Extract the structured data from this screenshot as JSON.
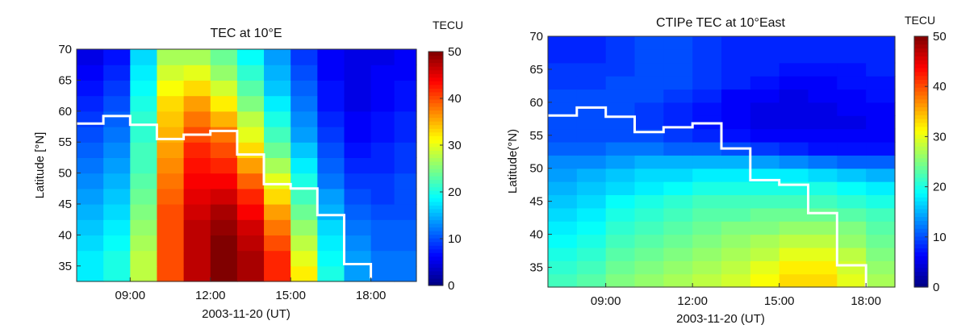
{
  "panels": [
    {
      "title": "TEC at 10°E",
      "ylabel": "Latitude [°N]",
      "xlabel": "2003-11-20 (UT)",
      "colorbar_title": "TECU",
      "colorbar_ticks": [
        "0",
        "10",
        "20",
        "30",
        "40",
        "50"
      ],
      "x_ticks": [
        "09:00",
        "12:00",
        "15:00",
        "18:00"
      ],
      "y_ticks": [
        "35",
        "40",
        "45",
        "50",
        "55",
        "60",
        "65",
        "70"
      ]
    },
    {
      "title": "CTIPe TEC at 10°East",
      "ylabel": "Latitude(°N)",
      "xlabel": "2003-11-20 (UT)",
      "colorbar_title": "TECU",
      "colorbar_ticks": [
        "0",
        "10",
        "20",
        "30",
        "40",
        "50"
      ],
      "x_ticks": [
        "09:00",
        "12:00",
        "15:00",
        "18:00"
      ],
      "y_ticks": [
        "35",
        "40",
        "45",
        "50",
        "55",
        "60",
        "65",
        "70"
      ]
    }
  ],
  "chart_data": [
    {
      "type": "heatmap",
      "title": "TEC at 10°E",
      "xlabel": "2003-11-20 (UT)",
      "ylabel": "Latitude [°N]",
      "x_unit": "UT hour",
      "xlim": [
        7.0,
        19.7
      ],
      "ylim": [
        32.5,
        70
      ],
      "x_ticks": [
        9,
        12,
        15,
        18
      ],
      "y_ticks": [
        35,
        40,
        45,
        50,
        55,
        60,
        65,
        70
      ],
      "color_range": [
        0,
        50
      ],
      "colorbar_label": "TECU",
      "colormap": "jet",
      "x_centers": [
        7.5,
        8.5,
        9.5,
        10.5,
        11.5,
        12.5,
        13.5,
        14.5,
        15.5,
        16.5,
        17.5,
        18.5,
        19.25
      ],
      "y_centers": [
        33.75,
        36.25,
        38.75,
        41.25,
        43.75,
        46.25,
        48.75,
        51.25,
        53.75,
        56.25,
        58.75,
        61.25,
        63.75,
        66.25,
        68.75
      ],
      "z": [
        [
          18,
          20,
          28,
          40,
          47,
          50,
          48,
          42,
          32,
          20,
          14,
          12,
          12
        ],
        [
          18,
          20,
          28,
          40,
          47,
          50,
          48,
          42,
          30,
          19,
          14,
          12,
          12
        ],
        [
          17,
          19,
          27,
          40,
          47,
          50,
          47,
          40,
          28,
          18,
          13,
          11,
          11
        ],
        [
          16,
          18,
          26,
          40,
          47,
          49,
          46,
          38,
          26,
          17,
          12,
          11,
          11
        ],
        [
          15,
          17,
          25,
          40,
          46,
          48,
          44,
          36,
          24,
          15,
          11,
          10,
          10
        ],
        [
          14,
          16,
          24,
          39,
          45,
          46,
          42,
          33,
          22,
          14,
          10,
          9,
          10
        ],
        [
          13,
          15,
          23,
          38,
          44,
          44,
          39,
          30,
          20,
          12,
          9,
          9,
          10
        ],
        [
          12,
          14,
          22,
          37,
          43,
          42,
          36,
          27,
          18,
          11,
          8,
          8,
          9
        ],
        [
          11,
          13,
          22,
          36,
          42,
          40,
          33,
          24,
          16,
          10,
          7,
          8,
          9
        ],
        [
          10,
          12,
          21,
          35,
          40,
          38,
          30,
          22,
          14,
          9,
          6,
          7,
          8
        ],
        [
          9,
          11,
          21,
          34,
          38,
          35,
          28,
          20,
          13,
          8,
          6,
          7,
          8
        ],
        [
          8,
          10,
          20,
          33,
          36,
          32,
          25,
          18,
          12,
          7,
          5,
          6,
          7
        ],
        [
          7,
          9,
          19,
          31,
          33,
          29,
          23,
          16,
          11,
          7,
          5,
          6,
          7
        ],
        [
          6,
          8,
          18,
          29,
          30,
          26,
          21,
          15,
          10,
          6,
          5,
          6,
          6
        ],
        [
          5,
          7,
          17,
          27,
          27,
          24,
          19,
          14,
          9,
          6,
          5,
          5,
          6
        ]
      ],
      "overlay_line": {
        "color": "#ffffff",
        "x": [
          7.0,
          8.0,
          8.0,
          9.0,
          9.0,
          10.0,
          10.0,
          11.0,
          11.0,
          12.0,
          12.0,
          13.0,
          13.0,
          14.0,
          14.0,
          15.0,
          15.0,
          16.0,
          16.0,
          17.0,
          17.0,
          18.0,
          18.0
        ],
        "y": [
          58.0,
          58.0,
          59.2,
          59.2,
          57.8,
          57.8,
          55.5,
          55.5,
          56.2,
          56.2,
          56.8,
          56.8,
          53.0,
          53.0,
          48.2,
          48.2,
          47.5,
          47.5,
          43.2,
          43.2,
          35.3,
          35.3,
          33.0
        ]
      }
    },
    {
      "type": "heatmap",
      "title": "CTIPe TEC at 10°East",
      "xlabel": "2003-11-20 (UT)",
      "ylabel": "Latitude(°N)",
      "x_unit": "UT hour",
      "xlim": [
        7.0,
        19.0
      ],
      "ylim": [
        32,
        70
      ],
      "x_ticks": [
        9,
        12,
        15,
        18
      ],
      "y_ticks": [
        35,
        40,
        45,
        50,
        55,
        60,
        65,
        70
      ],
      "color_range": [
        0,
        50
      ],
      "colorbar_label": "TECU",
      "colormap": "jet",
      "x_centers": [
        7.5,
        8.5,
        9.5,
        10.5,
        11.5,
        12.5,
        13.5,
        14.5,
        15.5,
        16.5,
        17.5,
        18.5
      ],
      "y_centers": [
        33,
        35,
        37,
        39,
        41,
        43,
        45,
        47,
        49,
        51,
        53,
        55,
        57,
        59,
        61,
        63,
        65,
        67,
        69
      ],
      "z": [
        [
          22,
          23,
          25,
          26,
          27,
          28,
          29,
          31,
          33,
          33,
          30,
          27
        ],
        [
          21,
          22,
          24,
          25,
          26,
          27,
          28,
          30,
          32,
          32,
          29,
          26
        ],
        [
          20,
          21,
          23,
          24,
          25,
          26,
          27,
          28,
          30,
          30,
          28,
          25
        ],
        [
          19,
          20,
          22,
          23,
          24,
          25,
          26,
          27,
          28,
          28,
          26,
          24
        ],
        [
          18,
          19,
          21,
          22,
          23,
          24,
          25,
          25,
          26,
          26,
          25,
          23
        ],
        [
          17,
          18,
          20,
          21,
          22,
          23,
          23,
          24,
          24,
          24,
          23,
          22
        ],
        [
          16,
          17,
          19,
          20,
          21,
          22,
          22,
          22,
          22,
          22,
          21,
          20
        ],
        [
          15,
          16,
          17,
          18,
          19,
          20,
          20,
          20,
          20,
          20,
          19,
          18
        ],
        [
          14,
          15,
          16,
          17,
          17,
          18,
          18,
          18,
          18,
          17,
          16,
          15
        ],
        [
          13,
          13,
          14,
          15,
          15,
          15,
          15,
          14,
          13,
          12,
          11,
          11
        ],
        [
          11,
          11,
          12,
          12,
          11,
          11,
          10,
          9,
          8,
          7,
          7,
          7
        ],
        [
          10,
          10,
          10,
          10,
          9,
          8,
          7,
          6,
          6,
          6,
          6,
          6
        ],
        [
          10,
          10,
          10,
          9,
          8,
          7,
          6,
          5,
          5,
          5,
          5,
          6
        ],
        [
          10,
          10,
          10,
          9,
          8,
          7,
          6,
          5,
          5,
          5,
          6,
          6
        ],
        [
          10,
          10,
          10,
          10,
          9,
          8,
          6,
          6,
          5,
          6,
          6,
          7
        ],
        [
          9,
          9,
          10,
          10,
          10,
          9,
          8,
          7,
          6,
          6,
          7,
          7
        ],
        [
          9,
          9,
          9,
          10,
          10,
          9,
          8,
          8,
          7,
          7,
          7,
          8
        ],
        [
          8,
          8,
          9,
          10,
          10,
          9,
          8,
          8,
          8,
          8,
          8,
          8
        ],
        [
          8,
          8,
          9,
          10,
          10,
          9,
          8,
          8,
          8,
          8,
          8,
          8
        ]
      ],
      "overlay_line": {
        "color": "#ffffff",
        "x": [
          7.0,
          8.0,
          8.0,
          9.0,
          9.0,
          10.0,
          10.0,
          11.0,
          11.0,
          12.0,
          12.0,
          13.0,
          13.0,
          14.0,
          14.0,
          15.0,
          15.0,
          16.0,
          16.0,
          17.0,
          17.0,
          18.0,
          18.0
        ],
        "y": [
          58.0,
          58.0,
          59.2,
          59.2,
          57.8,
          57.8,
          55.5,
          55.5,
          56.2,
          56.2,
          56.8,
          56.8,
          53.0,
          53.0,
          48.2,
          48.2,
          47.5,
          47.5,
          43.2,
          43.2,
          35.3,
          35.3,
          32.0
        ]
      }
    }
  ]
}
